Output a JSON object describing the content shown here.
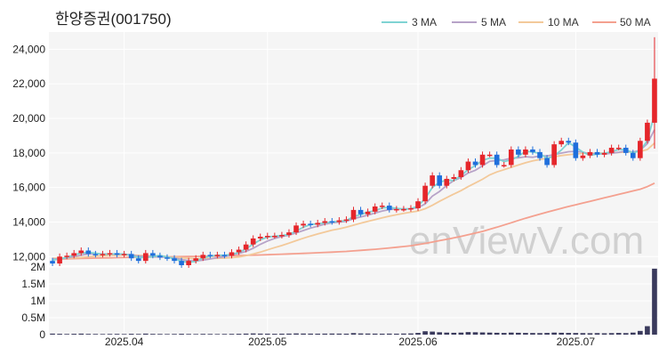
{
  "title": "한양증권(001750)",
  "watermark": "enViewV.com",
  "legend": [
    {
      "label": "3 MA",
      "color": "#7fd3d3"
    },
    {
      "label": "5 MA",
      "color": "#b7a3c8"
    },
    {
      "label": "10 MA",
      "color": "#f3c99a"
    },
    {
      "label": "50 MA",
      "color": "#f4a08f"
    }
  ],
  "colors": {
    "up": "#e5262b",
    "down": "#1f6fdc",
    "volume": "#3a3a5c",
    "grid": "#ffffff",
    "plot_bg": "#f5f5f5"
  },
  "chart_data": {
    "type": "candlestick",
    "x_ticks": [
      "2025.04",
      "2025.05",
      "2025.06",
      "2025.07"
    ],
    "price_axis": {
      "range": [
        11500,
        25000
      ],
      "ticks": [
        12000,
        14000,
        16000,
        18000,
        20000,
        22000,
        24000
      ],
      "labels": [
        "12,000",
        "14,000",
        "16,000",
        "18,000",
        "20,000",
        "22,000",
        "24,000"
      ]
    },
    "volume_axis": {
      "range": [
        0,
        2000000
      ],
      "ticks": [
        0,
        500000,
        1000000,
        1500000,
        2000000
      ],
      "labels": [
        "0",
        "0.5M",
        "1M",
        "1.5M",
        "2M"
      ]
    },
    "closes": [
      11600,
      12000,
      12050,
      12200,
      12350,
      12150,
      12100,
      12150,
      12200,
      12100,
      12150,
      11900,
      11750,
      12200,
      12050,
      11950,
      11900,
      11750,
      11500,
      11750,
      11900,
      12100,
      12050,
      12100,
      12050,
      12250,
      12400,
      12700,
      13050,
      13150,
      13200,
      13200,
      13250,
      13400,
      13800,
      13900,
      13850,
      13950,
      14050,
      14000,
      14100,
      14150,
      14700,
      14450,
      14600,
      14900,
      14950,
      14700,
      14750,
      14750,
      14800,
      15200,
      16100,
      16700,
      16100,
      16500,
      16600,
      17000,
      17500,
      17300,
      17900,
      17900,
      17300,
      17300,
      18200,
      17900,
      18200,
      18050,
      17700,
      17300,
      18500,
      18700,
      18600,
      17700,
      17850,
      18050,
      17900,
      18000,
      18300,
      18300,
      18000,
      17700,
      18700,
      19750,
      22300
    ],
    "ma3": [
      11800,
      11860,
      11950,
      12100,
      12200,
      12230,
      12200,
      12130,
      12150,
      12150,
      12150,
      12050,
      11950,
      11950,
      12000,
      12070,
      11970,
      11870,
      11720,
      11670,
      11720,
      11920,
      12020,
      12080,
      12070,
      12130,
      12230,
      12450,
      12720,
      12970,
      13130,
      13180,
      13220,
      13280,
      13480,
      13700,
      13850,
      13900,
      13950,
      14000,
      14050,
      14080,
      14320,
      14430,
      14580,
      14650,
      14820,
      14850,
      14800,
      14730,
      14770,
      14920,
      15370,
      16000,
      16300,
      16430,
      16400,
      16700,
      17030,
      17270,
      17570,
      17700,
      17700,
      17500,
      17600,
      17800,
      18100,
      18050,
      17980,
      17680,
      17830,
      18170,
      18600,
      18330,
      18050,
      17870,
      17930,
      17980,
      18070,
      18200,
      18200,
      18000,
      18130,
      18720,
      20250
    ],
    "ma5": [
      11850,
      11870,
      11920,
      12000,
      12080,
      12160,
      12160,
      12150,
      12150,
      12140,
      12140,
      12100,
      12020,
      12020,
      12000,
      11970,
      11970,
      11930,
      11830,
      11770,
      11740,
      11800,
      11860,
      11940,
      11990,
      12110,
      12180,
      12300,
      12480,
      12710,
      12900,
      13050,
      13160,
      13240,
      13370,
      13510,
      13650,
      13760,
      13880,
      13950,
      14000,
      14040,
      14200,
      14300,
      14400,
      14520,
      14640,
      14720,
      14760,
      14760,
      14770,
      14830,
      15050,
      15500,
      15770,
      16120,
      16400,
      16580,
      16840,
      17000,
      17260,
      17520,
      17560,
      17600,
      17700,
      17720,
      17780,
      17750,
      17830,
      17830,
      17900,
      17990,
      18070,
      18090,
      18050,
      17930,
      17960,
      17940,
      17980,
      18040,
      18120,
      18050,
      18160,
      18540,
      19350
    ],
    "ma10": [
      11900,
      11900,
      11910,
      11930,
      11950,
      11990,
      12020,
      12040,
      12060,
      12080,
      12100,
      12090,
      12070,
      12050,
      12040,
      12030,
      12000,
      11970,
      11930,
      11900,
      11880,
      11880,
      11890,
      11900,
      11910,
      11940,
      11980,
      12050,
      12150,
      12260,
      12390,
      12520,
      12640,
      12780,
      12920,
      13060,
      13190,
      13310,
      13420,
      13530,
      13610,
      13700,
      13820,
      13930,
      14040,
      14140,
      14240,
      14340,
      14420,
      14500,
      14570,
      14640,
      14770,
      14970,
      15200,
      15410,
      15620,
      15820,
      16050,
      16260,
      16480,
      16730,
      16900,
      17030,
      17170,
      17300,
      17430,
      17540,
      17620,
      17700,
      17780,
      17850,
      17900,
      17940,
      17970,
      17980,
      17980,
      17990,
      18010,
      18030,
      18050,
      18050,
      18090,
      18200,
      18570
    ],
    "ma50": [
      11850,
      11860,
      11870,
      11880,
      11890,
      11900,
      11910,
      11920,
      11930,
      11940,
      11950,
      11960,
      11970,
      11975,
      11980,
      11985,
      11990,
      11995,
      12000,
      12005,
      12010,
      12015,
      12020,
      12030,
      12040,
      12050,
      12060,
      12070,
      12080,
      12095,
      12110,
      12125,
      12140,
      12155,
      12170,
      12185,
      12200,
      12220,
      12240,
      12260,
      12280,
      12300,
      12330,
      12360,
      12390,
      12420,
      12460,
      12500,
      12540,
      12580,
      12630,
      12690,
      12760,
      12840,
      12920,
      13000,
      13080,
      13170,
      13260,
      13360,
      13460,
      13580,
      13700,
      13830,
      13960,
      14090,
      14220,
      14340,
      14460,
      14570,
      14680,
      14790,
      14900,
      15000,
      15100,
      15200,
      15300,
      15400,
      15500,
      15600,
      15700,
      15800,
      15900,
      16050,
      16250
    ],
    "volumes": [
      30000,
      25000,
      20000,
      25000,
      30000,
      22000,
      20000,
      18000,
      20000,
      22000,
      18000,
      25000,
      20000,
      30000,
      22000,
      20000,
      18000,
      20000,
      25000,
      20000,
      18000,
      22000,
      20000,
      18000,
      20000,
      22000,
      25000,
      30000,
      35000,
      30000,
      28000,
      25000,
      28000,
      30000,
      35000,
      32000,
      30000,
      28000,
      30000,
      32000,
      30000,
      28000,
      45000,
      35000,
      32000,
      30000,
      28000,
      30000,
      28000,
      32000,
      35000,
      50000,
      100000,
      90000,
      70000,
      60000,
      55000,
      60000,
      75000,
      70000,
      65000,
      60000,
      55000,
      50000,
      60000,
      55000,
      50000,
      48000,
      45000,
      50000,
      60000,
      55000,
      50000,
      48000,
      45000,
      42000,
      45000,
      40000,
      45000,
      50000,
      45000,
      60000,
      110000,
      250000,
      1950000
    ]
  }
}
